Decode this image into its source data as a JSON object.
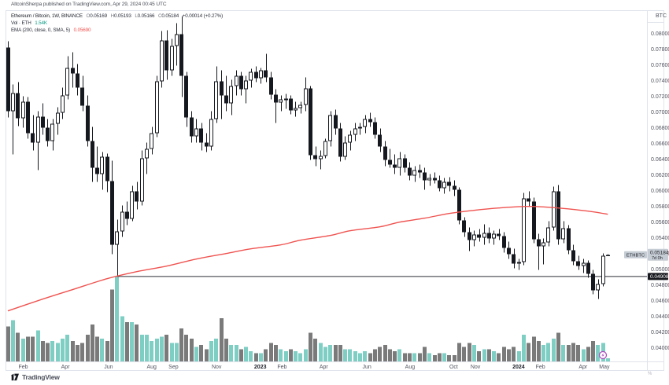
{
  "attribution": "AltcoinSherpa published on TradingView.com, Apr 29, 2024 00:45 UTC",
  "legend": {
    "title": "Ethereum / Bitcoin, 1W, BINANCE",
    "ohlc": {
      "o_label": "O",
      "o": "0.05169",
      "h_label": "H",
      "h": "0.05193",
      "l_label": "L",
      "l": "0.05166",
      "c_label": "C",
      "c": "0.05184",
      "change": "+0.00014 (+0.27%)"
    },
    "volume_label": "Vol · ETH",
    "volume_value": "1.54K",
    "ema_label": "EMA (200, close, 0, SMA, 5)",
    "ema_value": "0.05690"
  },
  "axis": {
    "unit": "BTC",
    "price": {
      "min": 0.04,
      "max": 0.08,
      "step": 0.002,
      "decimals": 5
    },
    "months": [
      {
        "t": "Feb",
        "w": 3.1
      },
      {
        "t": "Apr",
        "w": 11.6
      },
      {
        "t": "Jun",
        "w": 20.3
      },
      {
        "t": "Aug",
        "w": 29.0
      },
      {
        "t": "Sep",
        "w": 33.4
      },
      {
        "t": "Nov",
        "w": 42.1
      },
      {
        "t": "2023",
        "w": 50.9,
        "y": true
      },
      {
        "t": "Feb",
        "w": 55.3
      },
      {
        "t": "Apr",
        "w": 63.7
      },
      {
        "t": "Jun",
        "w": 72.4
      },
      {
        "t": "Aug",
        "w": 81.1
      },
      {
        "t": "Oct",
        "w": 89.9
      },
      {
        "t": "Nov",
        "w": 94.3
      },
      {
        "t": "2024",
        "w": 103.0,
        "y": true
      },
      {
        "t": "Feb",
        "w": 107.4
      },
      {
        "t": "Apr",
        "w": 116.0
      },
      {
        "t": "May",
        "w": 120.3
      }
    ],
    "price_label": {
      "symbol": "ETHBTC",
      "price": "0.05184",
      "countdown": "7d 0h"
    },
    "hline_label": "0.04908"
  },
  "footer": {
    "logo_text": "TradingView",
    "corner_glyph": "%"
  },
  "colors": {
    "up_fill": "#ffffff",
    "down_fill": "#15181e",
    "stroke": "#15181e",
    "vol_up": "#7ecec4",
    "vol_down": "#7a7a7a",
    "ema": "#ef5350",
    "ray": "#2a2e39",
    "axis_text": "#50535e",
    "year_text": "#1b1f27",
    "frame": "#e0e3eb",
    "label_bg": "#c6ccd4",
    "label_text": "#1d2026",
    "hline_bg": "#16181d",
    "hline_text": "#ffffff",
    "teal_text": "#089981",
    "red_text": "#ef5350",
    "marker": "#ab47bc"
  },
  "chart_data": {
    "type": "candlestick+volume",
    "symbol": "ETHBTC",
    "exchange": "BINANCE",
    "timeframe": "1W",
    "first_week": "2022-01-10",
    "weeks": 122,
    "note": "candles are [open, high, low, close, volume_kETH]; grid off; price axis right 0.04-0.08 step 0.002; volume colored by candle direction",
    "candles": [
      [
        0.0782,
        0.079,
        0.0693,
        0.0701,
        17
      ],
      [
        0.0701,
        0.0735,
        0.0646,
        0.0724,
        20
      ],
      [
        0.0724,
        0.0738,
        0.0682,
        0.0692,
        14
      ],
      [
        0.0692,
        0.072,
        0.068,
        0.0713,
        11
      ],
      [
        0.0713,
        0.0719,
        0.0666,
        0.0673,
        12
      ],
      [
        0.0673,
        0.0696,
        0.0651,
        0.0661,
        12
      ],
      [
        0.0661,
        0.0701,
        0.0626,
        0.0694,
        15
      ],
      [
        0.0694,
        0.0711,
        0.0671,
        0.068,
        10
      ],
      [
        0.068,
        0.0691,
        0.0656,
        0.0663,
        9
      ],
      [
        0.0663,
        0.0691,
        0.0651,
        0.0685,
        10
      ],
      [
        0.0685,
        0.0706,
        0.0671,
        0.0699,
        9
      ],
      [
        0.0699,
        0.0731,
        0.0691,
        0.0721,
        11
      ],
      [
        0.0721,
        0.0771,
        0.0716,
        0.0756,
        13
      ],
      [
        0.0756,
        0.0776,
        0.0731,
        0.0749,
        10
      ],
      [
        0.0749,
        0.0761,
        0.0721,
        0.0731,
        8
      ],
      [
        0.0731,
        0.0746,
        0.0701,
        0.0708,
        9
      ],
      [
        0.0708,
        0.0721,
        0.0656,
        0.0663,
        13
      ],
      [
        0.0663,
        0.0681,
        0.0611,
        0.0629,
        18
      ],
      [
        0.0629,
        0.0656,
        0.0611,
        0.0621,
        12
      ],
      [
        0.0621,
        0.0649,
        0.0601,
        0.0643,
        11
      ],
      [
        0.0643,
        0.0647,
        0.0598,
        0.0612,
        10
      ],
      [
        0.0612,
        0.0638,
        0.0519,
        0.0531,
        35
      ],
      [
        0.0531,
        0.0563,
        0.04908,
        0.0548,
        41
      ],
      [
        0.0548,
        0.0581,
        0.0541,
        0.0573,
        22
      ],
      [
        0.0573,
        0.0586,
        0.0556,
        0.0564,
        19
      ],
      [
        0.0564,
        0.0606,
        0.0561,
        0.0599,
        19
      ],
      [
        0.0599,
        0.0611,
        0.0576,
        0.0586,
        18
      ],
      [
        0.0586,
        0.0651,
        0.0581,
        0.0641,
        13
      ],
      [
        0.0641,
        0.0661,
        0.0621,
        0.0653,
        13
      ],
      [
        0.0653,
        0.0681,
        0.0646,
        0.0673,
        10
      ],
      [
        0.0673,
        0.0746,
        0.0668,
        0.0739,
        11
      ],
      [
        0.0739,
        0.0803,
        0.0731,
        0.0791,
        12
      ],
      [
        0.0791,
        0.0804,
        0.0741,
        0.0753,
        13
      ],
      [
        0.0753,
        0.0793,
        0.0746,
        0.0784,
        9
      ],
      [
        0.0784,
        0.0813,
        0.0759,
        0.0799,
        9
      ],
      [
        0.0799,
        0.0822,
        0.0719,
        0.0746,
        16
      ],
      [
        0.0746,
        0.0751,
        0.0681,
        0.0693,
        13
      ],
      [
        0.0693,
        0.0701,
        0.0661,
        0.0669,
        11
      ],
      [
        0.0669,
        0.0691,
        0.0661,
        0.0679,
        7
      ],
      [
        0.0679,
        0.0686,
        0.0651,
        0.0661,
        8
      ],
      [
        0.0661,
        0.0673,
        0.0649,
        0.0656,
        6
      ],
      [
        0.0656,
        0.0701,
        0.0651,
        0.0691,
        10
      ],
      [
        0.0691,
        0.0758,
        0.0686,
        0.0739,
        11
      ],
      [
        0.0739,
        0.0753,
        0.0691,
        0.0721,
        21
      ],
      [
        0.0721,
        0.0746,
        0.0701,
        0.0711,
        11
      ],
      [
        0.0711,
        0.0741,
        0.0696,
        0.0733,
        8
      ],
      [
        0.0733,
        0.0753,
        0.0721,
        0.0746,
        8
      ],
      [
        0.0746,
        0.0751,
        0.0721,
        0.0729,
        6
      ],
      [
        0.0729,
        0.0746,
        0.0711,
        0.074,
        7
      ],
      [
        0.074,
        0.0755,
        0.0731,
        0.0751,
        5
      ],
      [
        0.0751,
        0.0758,
        0.0738,
        0.0743,
        4
      ],
      [
        0.0743,
        0.0756,
        0.0736,
        0.0753,
        4
      ],
      [
        0.0753,
        0.0774,
        0.0738,
        0.0744,
        6
      ],
      [
        0.0744,
        0.0751,
        0.0716,
        0.0722,
        9
      ],
      [
        0.0722,
        0.0729,
        0.0686,
        0.0712,
        8
      ],
      [
        0.0712,
        0.0721,
        0.0701,
        0.0716,
        6
      ],
      [
        0.0716,
        0.0723,
        0.0704,
        0.0717,
        5
      ],
      [
        0.0717,
        0.0721,
        0.0697,
        0.0702,
        6
      ],
      [
        0.0702,
        0.0713,
        0.0694,
        0.0705,
        5
      ],
      [
        0.0705,
        0.0713,
        0.0698,
        0.0709,
        4
      ],
      [
        0.0709,
        0.0744,
        0.0701,
        0.073,
        6
      ],
      [
        0.073,
        0.0733,
        0.0639,
        0.0645,
        14
      ],
      [
        0.0645,
        0.0656,
        0.0631,
        0.064,
        11
      ],
      [
        0.064,
        0.0651,
        0.0627,
        0.0644,
        9
      ],
      [
        0.0644,
        0.0666,
        0.0641,
        0.0663,
        7
      ],
      [
        0.0663,
        0.0701,
        0.0656,
        0.0696,
        8
      ],
      [
        0.0696,
        0.0703,
        0.0671,
        0.0679,
        8
      ],
      [
        0.0679,
        0.0686,
        0.0637,
        0.0643,
        8
      ],
      [
        0.0643,
        0.0669,
        0.0639,
        0.0661,
        6
      ],
      [
        0.0661,
        0.0676,
        0.0651,
        0.0671,
        6
      ],
      [
        0.0671,
        0.0686,
        0.0663,
        0.0679,
        5
      ],
      [
        0.0679,
        0.0686,
        0.0671,
        0.0681,
        4
      ],
      [
        0.0681,
        0.0696,
        0.0673,
        0.0691,
        5
      ],
      [
        0.0691,
        0.0699,
        0.0681,
        0.0687,
        4
      ],
      [
        0.0687,
        0.0693,
        0.0666,
        0.0671,
        6
      ],
      [
        0.0671,
        0.0679,
        0.0649,
        0.0656,
        7
      ],
      [
        0.0656,
        0.0663,
        0.0631,
        0.0639,
        8
      ],
      [
        0.0639,
        0.0653,
        0.0629,
        0.0633,
        6
      ],
      [
        0.0633,
        0.0646,
        0.0621,
        0.0629,
        5
      ],
      [
        0.0629,
        0.0649,
        0.0619,
        0.0641,
        6
      ],
      [
        0.0641,
        0.0646,
        0.0623,
        0.0629,
        4
      ],
      [
        0.0629,
        0.0636,
        0.0613,
        0.0619,
        4
      ],
      [
        0.0619,
        0.0631,
        0.0611,
        0.0626,
        4
      ],
      [
        0.0626,
        0.0633,
        0.0616,
        0.0623,
        4
      ],
      [
        0.0623,
        0.0629,
        0.0601,
        0.0613,
        7
      ],
      [
        0.0613,
        0.0621,
        0.0606,
        0.0616,
        4
      ],
      [
        0.0616,
        0.0623,
        0.0609,
        0.0613,
        3
      ],
      [
        0.0613,
        0.0619,
        0.0599,
        0.0603,
        4
      ],
      [
        0.0603,
        0.0616,
        0.0596,
        0.0611,
        4
      ],
      [
        0.0611,
        0.0617,
        0.0599,
        0.0606,
        3
      ],
      [
        0.0606,
        0.0613,
        0.0593,
        0.0601,
        3
      ],
      [
        0.0601,
        0.0604,
        0.0557,
        0.0562,
        9
      ],
      [
        0.0562,
        0.0566,
        0.0541,
        0.0547,
        7
      ],
      [
        0.0547,
        0.0553,
        0.0523,
        0.0537,
        9
      ],
      [
        0.0537,
        0.0549,
        0.0529,
        0.0544,
        8
      ],
      [
        0.0544,
        0.0551,
        0.0535,
        0.054,
        5
      ],
      [
        0.054,
        0.0557,
        0.0531,
        0.0546,
        6
      ],
      [
        0.0546,
        0.0553,
        0.0533,
        0.0539,
        6
      ],
      [
        0.0539,
        0.0549,
        0.0531,
        0.0545,
        5
      ],
      [
        0.0545,
        0.0551,
        0.0537,
        0.0542,
        4
      ],
      [
        0.0542,
        0.0547,
        0.0521,
        0.0527,
        7
      ],
      [
        0.0527,
        0.0535,
        0.0513,
        0.0519,
        6
      ],
      [
        0.0519,
        0.0526,
        0.0501,
        0.0507,
        7
      ],
      [
        0.0507,
        0.0513,
        0.0499,
        0.0509,
        5
      ],
      [
        0.0509,
        0.0597,
        0.0505,
        0.059,
        13
      ],
      [
        0.059,
        0.0599,
        0.0579,
        0.0586,
        9
      ],
      [
        0.0586,
        0.0591,
        0.0533,
        0.0538,
        12
      ],
      [
        0.0538,
        0.0545,
        0.0499,
        0.0529,
        10
      ],
      [
        0.0529,
        0.0539,
        0.0506,
        0.0534,
        8
      ],
      [
        0.0534,
        0.0561,
        0.0529,
        0.0553,
        9
      ],
      [
        0.0553,
        0.0605,
        0.0549,
        0.0599,
        11
      ],
      [
        0.0599,
        0.0607,
        0.0531,
        0.0538,
        14
      ],
      [
        0.0538,
        0.0561,
        0.0533,
        0.0552,
        8
      ],
      [
        0.0552,
        0.0556,
        0.0519,
        0.0524,
        8
      ],
      [
        0.0524,
        0.0531,
        0.0505,
        0.051,
        9
      ],
      [
        0.051,
        0.0517,
        0.0499,
        0.0504,
        8
      ],
      [
        0.0504,
        0.0513,
        0.0495,
        0.0508,
        6
      ],
      [
        0.0508,
        0.0511,
        0.0489,
        0.0494,
        7
      ],
      [
        0.0494,
        0.0499,
        0.0468,
        0.0473,
        10
      ],
      [
        0.0473,
        0.0487,
        0.0462,
        0.0481,
        8
      ],
      [
        0.0481,
        0.052,
        0.0478,
        0.0517,
        9
      ],
      [
        0.05169,
        0.05193,
        0.05166,
        0.05184,
        1.54
      ]
    ],
    "ema": {
      "label": "EMA 200 (1W)",
      "last_value": 0.0569,
      "anchors": [
        [
          0,
          0.0447
        ],
        [
          7,
          0.0462
        ],
        [
          13,
          0.0474
        ],
        [
          20,
          0.0488
        ],
        [
          26,
          0.0497
        ],
        [
          32,
          0.0504
        ],
        [
          38,
          0.0513
        ],
        [
          44,
          0.052
        ],
        [
          49,
          0.0526
        ],
        [
          55,
          0.0531
        ],
        [
          59,
          0.0537
        ],
        [
          65,
          0.0543
        ],
        [
          69,
          0.0549
        ],
        [
          75,
          0.0554
        ],
        [
          79,
          0.056
        ],
        [
          84,
          0.0565
        ],
        [
          89,
          0.0571
        ],
        [
          94,
          0.0575
        ],
        [
          99,
          0.0578
        ],
        [
          105,
          0.058
        ],
        [
          111,
          0.0578
        ],
        [
          117,
          0.0574
        ],
        [
          121,
          0.057
        ]
      ]
    },
    "hline": {
      "price": 0.04908,
      "from_week": 22
    },
    "last_price": 0.05184,
    "event_marker": {
      "week": 120
    }
  }
}
